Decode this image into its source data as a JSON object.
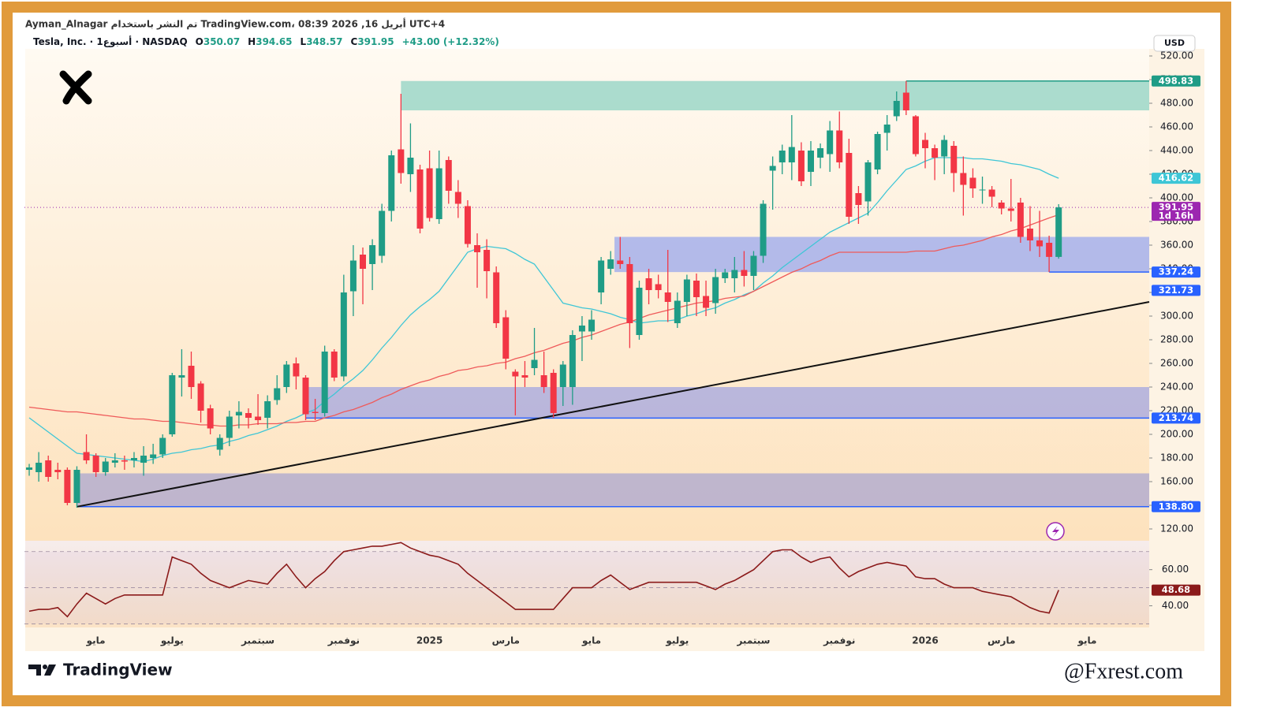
{
  "header": {
    "publisher": "Ayman_Alnagar تم النشر باستخدام TradingView.com، 08:39 2026 ,16 أبريل UTC+4",
    "symbol": "Tesla, Inc. · 1أسبوع · NASDAQ",
    "ohlc_letters": [
      "O",
      "H",
      "L",
      "C"
    ],
    "change": "+43.00 (+12.32%)",
    "currency": "USD",
    "countdown": "1d 16h",
    "brand": "TradingView",
    "watermark": "@Fxrest.com"
  },
  "chart_data": {
    "type": "candlestick",
    "categories": [
      null,
      null,
      null,
      null,
      null,
      null,
      null,
      "مايو",
      null,
      null,
      null,
      null,
      null,
      null,
      null,
      "يوليو",
      null,
      null,
      null,
      null,
      null,
      null,
      null,
      null,
      "سبتمبر",
      null,
      null,
      null,
      null,
      null,
      null,
      null,
      null,
      "نوفمبر",
      null,
      null,
      null,
      null,
      null,
      null,
      null,
      null,
      "2025",
      null,
      null,
      null,
      null,
      null,
      null,
      null,
      "مارس",
      null,
      null,
      null,
      null,
      null,
      null,
      null,
      null,
      "مايو",
      null,
      null,
      null,
      null,
      null,
      null,
      null,
      null,
      "يوليو",
      null,
      null,
      null,
      null,
      null,
      null,
      null,
      "سبتمبر",
      null,
      null,
      null,
      null,
      null,
      null,
      null,
      null,
      "نوفمبر",
      null,
      null,
      null,
      null,
      null,
      null,
      null,
      null,
      "2026",
      null,
      null,
      null,
      null,
      null,
      null,
      null,
      "مارس",
      null,
      null,
      null,
      null,
      null,
      null,
      null,
      null,
      "مايو",
      null,
      null,
      null,
      null,
      null,
      null
    ],
    "open": [
      170,
      168,
      178,
      170,
      170,
      142,
      185,
      182,
      168,
      176,
      178,
      178,
      176,
      180,
      183,
      200,
      248,
      258,
      243,
      222,
      187,
      197,
      216,
      218,
      215,
      214,
      229,
      240,
      260,
      248,
      219,
      218,
      270,
      249,
      321,
      352,
      344,
      351,
      389,
      441,
      420,
      424,
      425,
      382,
      432,
      405,
      393,
      360,
      356,
      337,
      299,
      253,
      250,
      256,
      250,
      252,
      240,
      240,
      287,
      287,
      320,
      340,
      347,
      344,
      284,
      332,
      327,
      320,
      294,
      312,
      330,
      317,
      311,
      332,
      332,
      339,
      334,
      351,
      423,
      430,
      430,
      440,
      422,
      434,
      437,
      457,
      438,
      404,
      397,
      424,
      455,
      469,
      489,
      469,
      449,
      442,
      435,
      444,
      421,
      417,
      407,
      407,
      396,
      391,
      396,
      374,
      364,
      362,
      350.07,
      null,
      null,
      null,
      null,
      null,
      null,
      null,
      null,
      null
    ],
    "high": [
      175,
      185,
      182,
      176,
      172,
      173,
      200,
      184,
      180,
      184,
      182,
      185,
      190,
      192,
      200,
      252,
      272,
      270,
      245,
      225,
      200,
      220,
      228,
      222,
      234,
      233,
      250,
      262,
      265,
      250,
      230,
      275,
      272,
      335,
      360,
      358,
      365,
      395,
      440,
      488,
      463,
      428,
      440,
      440,
      435,
      415,
      398,
      370,
      365,
      342,
      305,
      255,
      262,
      290,
      270,
      255,
      262,
      288,
      300,
      305,
      350,
      355,
      367,
      350,
      330,
      340,
      335,
      356,
      320,
      335,
      336,
      330,
      340,
      340,
      350,
      355,
      355,
      398,
      435,
      445,
      470,
      447,
      448,
      446,
      465,
      473,
      450,
      410,
      432,
      456,
      470,
      490,
      498.83,
      470,
      455,
      445,
      453,
      448,
      435,
      425,
      418,
      410,
      398,
      416,
      400,
      393,
      389,
      368,
      394.65,
      null,
      null,
      null,
      null,
      null,
      null,
      null,
      null,
      null
    ],
    "low": [
      165,
      160,
      160,
      162,
      140,
      138,
      175,
      164,
      165,
      172,
      170,
      172,
      165,
      175,
      180,
      198,
      232,
      230,
      210,
      200,
      182,
      190,
      205,
      205,
      208,
      205,
      225,
      235,
      238,
      212,
      212,
      215,
      245,
      245,
      300,
      310,
      322,
      345,
      380,
      412,
      405,
      370,
      380,
      378,
      395,
      383,
      358,
      324,
      315,
      290,
      255,
      216,
      240,
      250,
      235,
      214,
      224,
      225,
      262,
      280,
      310,
      335,
      340,
      273,
      280,
      310,
      315,
      295,
      290,
      300,
      300,
      300,
      302,
      328,
      320,
      325,
      322,
      345,
      390,
      420,
      415,
      410,
      410,
      425,
      422,
      425,
      378,
      378,
      385,
      420,
      440,
      465,
      470,
      435,
      425,
      415,
      420,
      405,
      385,
      400,
      395,
      392,
      386,
      380,
      362,
      355,
      350,
      337.24,
      348.57,
      null,
      null,
      null,
      null,
      null,
      null,
      null,
      null,
      null
    ],
    "close": [
      172,
      176,
      164,
      168,
      142,
      170,
      178,
      168,
      177,
      178,
      177,
      180,
      182,
      183,
      197,
      250,
      250,
      240,
      220,
      205,
      197,
      215,
      219,
      214,
      212,
      228,
      239,
      259,
      249,
      217,
      218,
      270,
      248,
      320,
      347,
      340,
      360,
      389,
      436,
      421,
      434,
      374,
      383,
      425,
      406,
      395,
      361,
      354,
      338,
      294,
      264,
      249,
      248,
      263,
      240,
      218,
      259,
      284,
      292,
      297,
      347,
      348,
      344,
      294,
      324,
      322,
      322,
      312,
      313,
      331,
      316,
      307,
      333,
      337,
      339,
      334,
      351,
      395,
      427,
      440,
      443,
      414,
      440,
      442,
      457,
      430,
      384,
      394,
      430,
      454,
      462,
      482,
      474,
      437,
      442,
      434,
      449,
      421,
      411,
      408,
      407,
      401,
      391,
      389,
      367,
      364,
      359,
      350.07,
      391.95,
      null,
      null,
      null,
      null,
      null,
      null,
      null,
      null,
      null
    ],
    "up_color": "#1f9c86",
    "down_color": "#f23645",
    "ema": {
      "color": "#3ec6d6",
      "values": [
        214,
        208,
        202,
        196,
        190,
        184,
        183,
        182,
        181,
        180,
        179,
        178,
        177,
        179,
        182,
        184,
        185,
        187,
        188,
        190,
        191,
        194,
        196,
        199,
        201,
        204,
        207,
        211,
        214,
        218,
        221,
        228,
        234,
        241,
        247,
        254,
        263,
        273,
        282,
        292,
        301,
        308,
        314,
        321,
        332,
        343,
        354,
        357,
        359,
        358,
        357,
        353,
        348,
        344,
        333,
        322,
        311,
        309,
        307,
        306,
        304,
        302,
        299,
        297,
        294,
        295,
        296,
        296,
        297,
        300,
        302,
        305,
        307,
        311,
        314,
        318,
        321,
        328,
        334,
        341,
        347,
        353,
        359,
        365,
        371,
        375,
        379,
        383,
        387,
        396,
        406,
        415,
        424,
        427,
        431,
        434,
        434,
        434,
        434,
        433,
        433,
        432,
        431,
        429,
        428,
        426,
        424,
        420,
        416.62,
        null,
        null,
        null,
        null,
        null,
        null,
        null,
        null,
        null
      ]
    },
    "sma": {
      "color": "#ef5a5a",
      "values": [
        223,
        222,
        221,
        220,
        219,
        219,
        218,
        217,
        216,
        215,
        214,
        213,
        213,
        212,
        211,
        211,
        210,
        209,
        208,
        208,
        207,
        207,
        208,
        208,
        209,
        209,
        209,
        210,
        210,
        211,
        211,
        214,
        216,
        219,
        221,
        224,
        227,
        231,
        234,
        238,
        241,
        244,
        246,
        249,
        251,
        254,
        255,
        257,
        258,
        260,
        261,
        264,
        266,
        269,
        271,
        274,
        277,
        279,
        282,
        284,
        287,
        290,
        293,
        295,
        298,
        301,
        303,
        305,
        307,
        309,
        311,
        312,
        313,
        315,
        316,
        317,
        321,
        325,
        329,
        333,
        337,
        340,
        344,
        347,
        351,
        354,
        354,
        354,
        354,
        354,
        354,
        354,
        354,
        355,
        355,
        355,
        357,
        359,
        360,
        362,
        364,
        367,
        369,
        372,
        374,
        377,
        380,
        383,
        385.71,
        null,
        null,
        null,
        null,
        null,
        null,
        null,
        null,
        null
      ]
    },
    "ylim": [
      110,
      526
    ],
    "yticks": [
      {
        "value": 120,
        "label": "120.00"
      },
      {
        "value": 140,
        "label": "140.00"
      },
      {
        "value": 160,
        "label": "160.00"
      },
      {
        "value": 180,
        "label": "180.00"
      },
      {
        "value": 200,
        "label": "200.00"
      },
      {
        "value": 220,
        "label": "220.00"
      },
      {
        "value": 240,
        "label": "240.00"
      },
      {
        "value": 260,
        "label": "260.00"
      },
      {
        "value": 280,
        "label": "280.00"
      },
      {
        "value": 300,
        "label": "300.00"
      },
      {
        "value": 320,
        "label": "320.00"
      },
      {
        "value": 340,
        "label": "340.00"
      },
      {
        "value": 360,
        "label": "360.00"
      },
      {
        "value": 380,
        "label": "380.00"
      },
      {
        "value": 400,
        "label": "400.00"
      },
      {
        "value": 420,
        "label": "420.00"
      },
      {
        "value": 440,
        "label": "440.00"
      },
      {
        "value": 460,
        "label": "460.00"
      },
      {
        "value": 480,
        "label": "480.00"
      },
      {
        "value": 500,
        "label": "500.00"
      },
      {
        "value": 520,
        "label": "520.00"
      }
    ],
    "zones": [
      {
        "low": 474,
        "high": 498.83,
        "color": "#8fd3c3"
      },
      {
        "low": 337.24,
        "high": 367,
        "color": "#9aa8ee"
      },
      {
        "low": 213.74,
        "high": 240,
        "color": "#a3a6e0"
      },
      {
        "low": 138.8,
        "high": 167,
        "color": "#aaa6d0"
      }
    ],
    "levels": [
      {
        "value": 498.83,
        "color": "#1f9c86"
      },
      {
        "value": 337.24,
        "color": "#2962ff"
      },
      {
        "value": 213.74,
        "color": "#2962ff"
      },
      {
        "value": 138.8,
        "label": "138.80",
        "color": "#2962ff"
      }
    ],
    "tag_321": 321.73,
    "tag_color": "#2962ff",
    "last_color": "#9c27b0",
    "trendline": [
      138.8,
      312
    ],
    "rsi": {
      "color": "#8b1a1a",
      "ylim": [
        28,
        76
      ],
      "yticks": [
        {
          "value": 40,
          "label": "40.00"
        },
        {
          "value": 60,
          "label": "60.00"
        }
      ],
      "bands": [
        70,
        50,
        30
      ],
      "values": [
        37,
        38,
        38,
        39,
        34,
        41,
        47,
        44,
        41,
        44,
        46,
        46,
        46,
        46,
        46,
        67,
        65,
        63,
        58,
        54,
        52,
        50,
        52,
        54,
        53,
        52,
        58,
        63,
        56,
        50,
        55,
        59,
        65,
        70,
        71,
        72,
        73,
        73,
        74,
        75,
        72,
        70,
        68,
        67,
        65,
        63,
        58,
        54,
        50,
        46,
        42,
        38,
        38,
        38,
        38,
        38,
        44,
        50,
        50,
        50,
        54,
        57,
        53,
        49,
        51,
        53,
        53,
        53,
        53,
        53,
        53,
        51,
        49,
        52,
        54,
        57,
        60,
        65,
        70,
        71,
        71,
        67,
        64,
        66,
        67,
        61,
        56,
        59,
        61,
        63,
        64,
        63,
        62,
        56,
        55,
        55,
        52,
        50,
        50,
        50,
        48,
        47,
        46,
        45,
        42,
        39,
        37,
        36,
        48.68,
        null,
        null,
        null,
        null,
        null,
        null,
        null,
        null,
        null
      ]
    }
  }
}
